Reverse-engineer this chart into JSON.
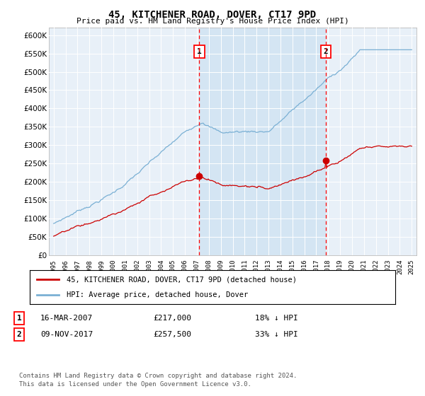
{
  "title": "45, KITCHENER ROAD, DOVER, CT17 9PD",
  "subtitle": "Price paid vs. HM Land Registry's House Price Index (HPI)",
  "hpi_color": "#7ab0d4",
  "hpi_fill": "#c8dff0",
  "price_color": "#cc0000",
  "bg_color": "#e8f0f8",
  "ylim": [
    0,
    620000
  ],
  "yticks": [
    0,
    50000,
    100000,
    150000,
    200000,
    250000,
    300000,
    350000,
    400000,
    450000,
    500000,
    550000,
    600000
  ],
  "year_start": 1995,
  "year_end": 2025,
  "purchase1_year": 2007.2,
  "purchase1_price": 217000,
  "purchase2_year": 2017.85,
  "purchase2_price": 257500,
  "legend_label_price": "45, KITCHENER ROAD, DOVER, CT17 9PD (detached house)",
  "legend_label_hpi": "HPI: Average price, detached house, Dover",
  "annotation1_date": "16-MAR-2007",
  "annotation1_price": "£217,000",
  "annotation1_pct": "18% ↓ HPI",
  "annotation2_date": "09-NOV-2017",
  "annotation2_price": "£257,500",
  "annotation2_pct": "33% ↓ HPI",
  "footer": "Contains HM Land Registry data © Crown copyright and database right 2024.\nThis data is licensed under the Open Government Licence v3.0."
}
